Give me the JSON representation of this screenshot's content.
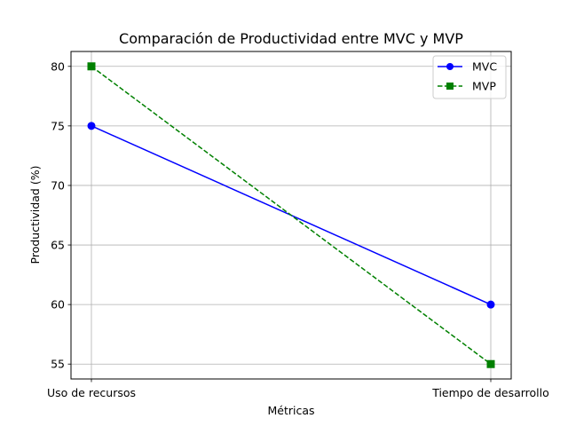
{
  "chart_data": {
    "type": "line",
    "title": "Comparación de Productividad entre MVC y MVP",
    "xlabel": "Métricas",
    "ylabel": "Productividad (%)",
    "categories": [
      "Uso de recursos",
      "Tiempo de desarrollo"
    ],
    "ylim": [
      53.75,
      81.25
    ],
    "yticks": [
      55,
      60,
      65,
      70,
      75,
      80
    ],
    "grid": true,
    "legend_position": "top-right",
    "series": [
      {
        "name": "MVC",
        "values": [
          75,
          60
        ],
        "color": "#0000ff",
        "marker": "circle",
        "linestyle": "solid"
      },
      {
        "name": "MVP",
        "values": [
          80,
          55
        ],
        "color": "#008000",
        "marker": "square",
        "linestyle": "dashed"
      }
    ]
  }
}
